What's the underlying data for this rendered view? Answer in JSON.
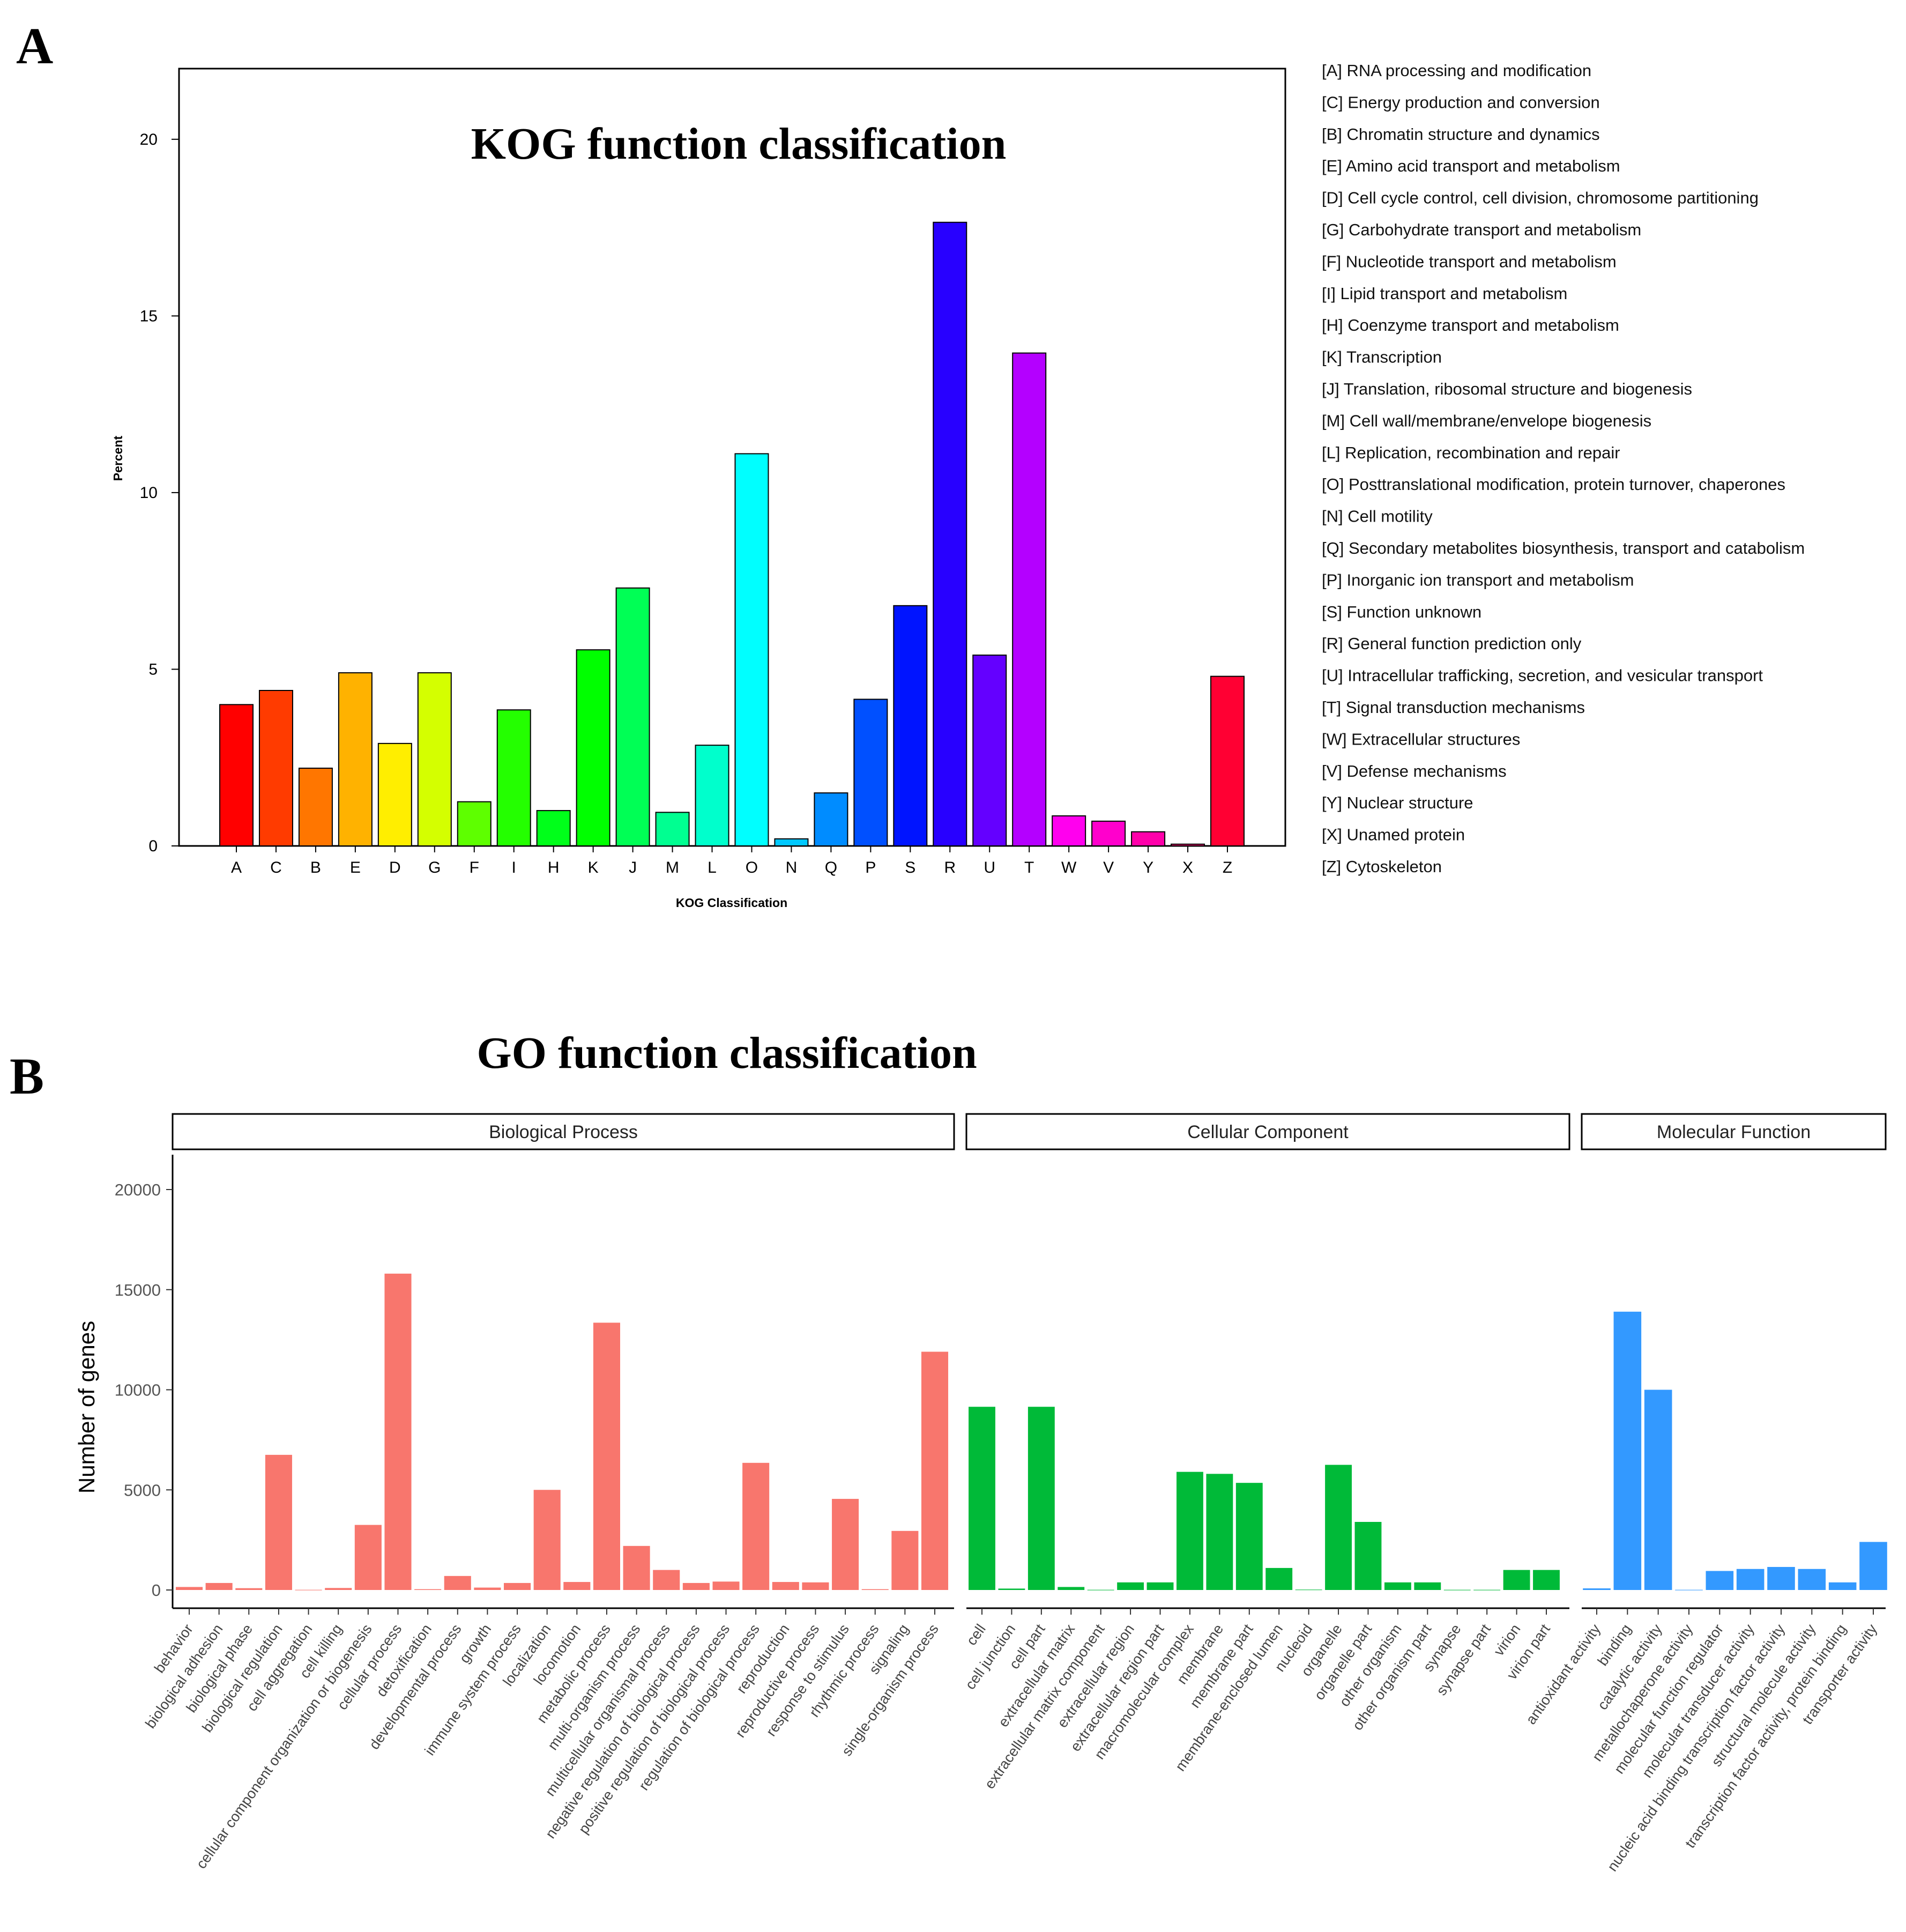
{
  "panels": {
    "a": "A",
    "b": "B"
  },
  "chart_data": [
    {
      "type": "bar",
      "title": "KOG function classification",
      "xlabel": "KOG Classification",
      "ylabel": "Percent",
      "ylim": [
        0,
        22
      ],
      "yticks": [
        0,
        5,
        10,
        15,
        20
      ],
      "categories": [
        "A",
        "C",
        "B",
        "E",
        "D",
        "G",
        "F",
        "I",
        "H",
        "K",
        "J",
        "M",
        "L",
        "O",
        "N",
        "Q",
        "P",
        "S",
        "R",
        "U",
        "T",
        "W",
        "V",
        "Y",
        "X",
        "Z"
      ],
      "values": [
        4.0,
        4.4,
        2.2,
        4.9,
        2.9,
        4.9,
        1.25,
        3.85,
        1.0,
        5.55,
        7.3,
        0.95,
        2.85,
        11.1,
        0.2,
        1.5,
        4.15,
        6.8,
        17.65,
        5.4,
        13.95,
        0.85,
        0.7,
        0.4,
        0.05,
        4.8
      ],
      "colors": [
        "#ff0000",
        "#ff3b00",
        "#ff7600",
        "#ffb200",
        "#ffee00",
        "#d4ff00",
        "#5eff00",
        "#24ff00",
        "#00ff1a",
        "#00ff00",
        "#00ff55",
        "#00ff91",
        "#00ffcc",
        "#00ffff",
        "#00c8ff",
        "#008cff",
        "#0050ff",
        "#0014ff",
        "#2800ff",
        "#6400ff",
        "#b400ff",
        "#ff00ee",
        "#ff00cc",
        "#ff00aa",
        "#ff0077",
        "#ff0033"
      ],
      "legend": [
        "[A] RNA processing and modification",
        "[C] Energy production and conversion",
        "[B] Chromatin structure and dynamics",
        "[E] Amino acid transport and metabolism",
        "[D] Cell cycle control, cell division, chromosome partitioning",
        "[G] Carbohydrate transport and metabolism",
        "[F] Nucleotide transport and metabolism",
        "[I] Lipid transport and metabolism",
        "[H] Coenzyme transport and metabolism",
        "[K] Transcription",
        "[J] Translation, ribosomal structure and biogenesis",
        "[M] Cell wall/membrane/envelope biogenesis",
        "[L] Replication, recombination and repair",
        "[O] Posttranslational modification, protein turnover, chaperones",
        "[N] Cell motility",
        "[Q] Secondary metabolites biosynthesis, transport and catabolism",
        "[P] Inorganic ion transport and metabolism",
        "[S] Function unknown",
        "[R] General function prediction only",
        "[U] Intracellular trafficking, secretion, and vesicular transport",
        "[T] Signal transduction mechanisms",
        "[W] Extracellular structures",
        "[V] Defense mechanisms",
        "[Y] Nuclear structure",
        "[X] Unamed protein",
        "[Z] Cytoskeleton"
      ]
    },
    {
      "type": "bar",
      "title": "GO function classification",
      "ylabel": "Number of genes",
      "ylim": [
        0,
        21500
      ],
      "yticks": [
        0,
        5000,
        10000,
        15000,
        20000
      ],
      "series": [
        {
          "name": "Biological Process",
          "color": "#f8766d",
          "categories": [
            "behavior",
            "biological adhesion",
            "biological phase",
            "biological regulation",
            "cell aggregation",
            "cell killing",
            "cellular component organization or biogenesis",
            "cellular process",
            "detoxification",
            "developmental process",
            "growth",
            "immune system process",
            "localization",
            "locomotion",
            "metabolic process",
            "multi-organism process",
            "multicellular organismal process",
            "negative regulation of biological process",
            "positive regulation of biological process",
            "regulation of biological process",
            "reproduction",
            "reproductive process",
            "response to stimulus",
            "rhythmic process",
            "signaling",
            "single-organism process"
          ],
          "values": [
            150,
            350,
            90,
            6750,
            10,
            100,
            3250,
            15800,
            40,
            700,
            120,
            350,
            5000,
            400,
            13350,
            2200,
            1000,
            350,
            420,
            6350,
            400,
            380,
            4550,
            40,
            2950,
            11900
          ]
        },
        {
          "name": "Cellular Component",
          "color": "#00ba38",
          "categories": [
            "cell",
            "cell junction",
            "cell part",
            "extracellular matrix",
            "extracellular matrix component",
            "extracellular region",
            "extracellular region part",
            "macromolecular complex",
            "membrane",
            "membrane part",
            "membrane-enclosed lumen",
            "nucleoid",
            "organelle",
            "organelle part",
            "other organism",
            "other organism part",
            "synapse",
            "synapse part",
            "virion",
            "virion part"
          ],
          "values": [
            9150,
            70,
            9150,
            150,
            10,
            380,
            380,
            5900,
            5800,
            5350,
            1100,
            20,
            6250,
            3400,
            380,
            380,
            10,
            10,
            1000,
            1000
          ]
        },
        {
          "name": "Molecular Function",
          "color": "#3399ff",
          "categories": [
            "antioxidant activity",
            "binding",
            "catalytic activity",
            "metallochaperone activity",
            "molecular function regulator",
            "molecular transducer activity",
            "nucleic acid binding transcription factor activity",
            "structural molecule activity",
            "transcription factor activity, protein binding",
            "transporter activity"
          ],
          "values": [
            80,
            13900,
            10000,
            10,
            950,
            1050,
            1150,
            1050,
            380,
            2400
          ]
        }
      ]
    }
  ]
}
